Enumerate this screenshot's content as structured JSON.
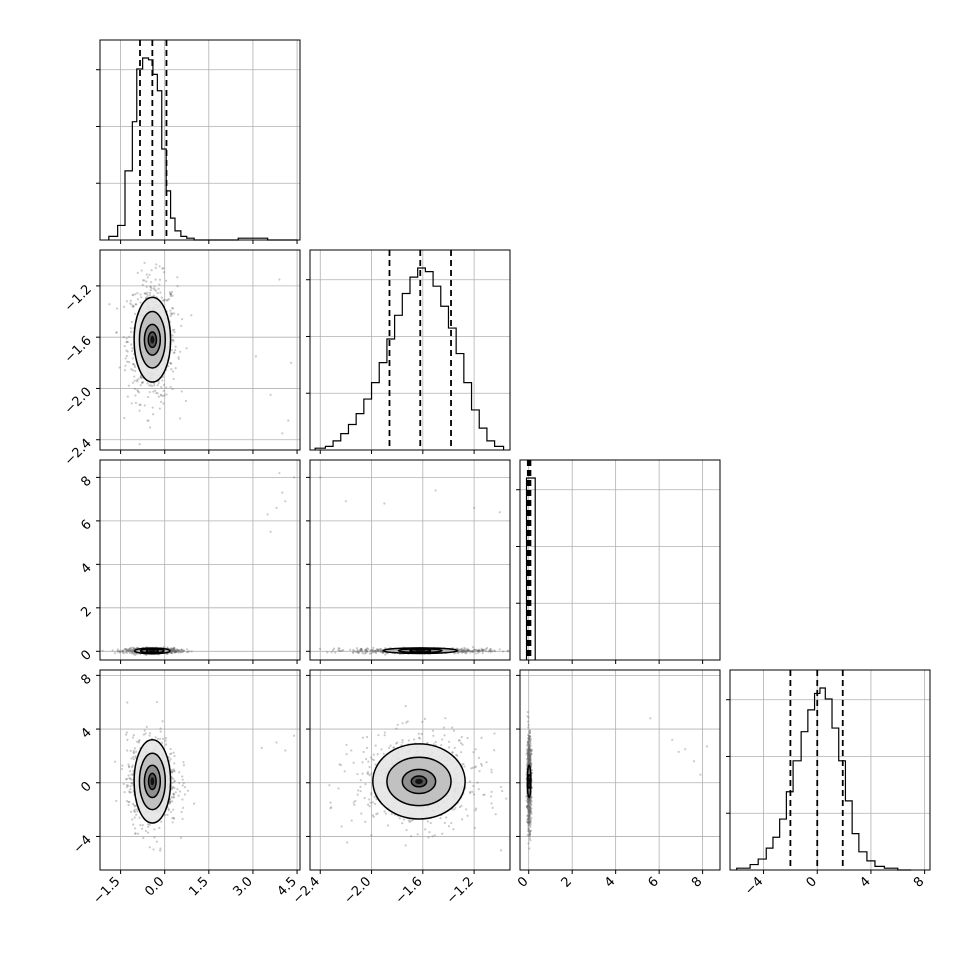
{
  "chart_data": {
    "type": "corner",
    "parameters": 4,
    "axes": [
      {
        "range": [
          -2.2,
          4.6
        ],
        "ticks": [
          -1.5,
          0.0,
          1.5,
          3.0,
          4.5
        ],
        "tick_labels": [
          "−1.5",
          "0.0",
          "1.5",
          "3.0",
          "4.5"
        ]
      },
      {
        "range": [
          -2.48,
          -0.92
        ],
        "ticks": [
          -2.4,
          -2.0,
          -1.6,
          -1.2
        ],
        "tick_labels": [
          "−2.4",
          "−2.0",
          "−1.6",
          "−1.2"
        ]
      },
      {
        "range": [
          -0.4,
          8.8
        ],
        "ticks": [
          0,
          2,
          4,
          6,
          8
        ],
        "tick_labels": [
          "0",
          "2",
          "4",
          "6",
          "8"
        ]
      },
      {
        "range": [
          -6.5,
          8.4
        ],
        "ticks": [
          -4,
          0,
          4,
          8
        ],
        "tick_labels": [
          "−4",
          "0",
          "4",
          "8"
        ]
      }
    ],
    "histograms": [
      {
        "param": 0,
        "bins": [
          -1.9,
          -1.6,
          -1.35,
          -1.1,
          -0.95,
          -0.75,
          -0.55,
          -0.4,
          -0.25,
          -0.1,
          0.05,
          0.2,
          0.35,
          0.55,
          0.75,
          1.0,
          1.3,
          1.7,
          2.5,
          3.5,
          3.8,
          4.5
        ],
        "counts": [
          0.02,
          0.08,
          0.38,
          0.65,
          0.94,
          1.0,
          0.99,
          0.91,
          0.82,
          0.5,
          0.27,
          0.12,
          0.05,
          0.02,
          0.01,
          0.0,
          0.0,
          0.0,
          0.01,
          0.0,
          0.0
        ],
        "quantiles": [
          -0.84,
          -0.42,
          0.06
        ]
      },
      {
        "param": 1,
        "bins": [
          -2.44,
          -2.36,
          -2.3,
          -2.24,
          -2.18,
          -2.12,
          -2.06,
          -2.0,
          -1.94,
          -1.88,
          -1.82,
          -1.76,
          -1.7,
          -1.64,
          -1.58,
          -1.52,
          -1.46,
          -1.4,
          -1.34,
          -1.28,
          -1.22,
          -1.16,
          -1.1,
          -1.04,
          -0.97
        ],
        "counts": [
          0.01,
          0.02,
          0.05,
          0.09,
          0.14,
          0.2,
          0.28,
          0.37,
          0.48,
          0.61,
          0.74,
          0.86,
          0.95,
          1.0,
          0.98,
          0.9,
          0.79,
          0.67,
          0.53,
          0.37,
          0.22,
          0.12,
          0.05,
          0.02
        ],
        "quantiles": [
          -1.86,
          -1.62,
          -1.38
        ]
      },
      {
        "param": 2,
        "bins": [
          -0.1,
          0.3
        ],
        "counts": [
          1.0
        ],
        "quantiles": [
          -0.04,
          0.02,
          0.08
        ]
      },
      {
        "param": 3,
        "bins": [
          -6.0,
          -5.0,
          -4.4,
          -3.8,
          -3.3,
          -2.8,
          -2.3,
          -1.8,
          -1.2,
          -0.7,
          -0.2,
          0.2,
          0.6,
          1.1,
          1.6,
          2.1,
          2.6,
          3.1,
          3.7,
          4.3,
          5.0,
          6.0,
          7.0
        ],
        "counts": [
          0.01,
          0.03,
          0.06,
          0.12,
          0.18,
          0.28,
          0.43,
          0.6,
          0.76,
          0.88,
          0.97,
          1.0,
          0.94,
          0.78,
          0.6,
          0.38,
          0.2,
          0.1,
          0.05,
          0.02,
          0.01,
          0.0
        ],
        "quantiles": [
          -2.0,
          0.0,
          1.9
        ]
      }
    ],
    "scatter_panels": [
      {
        "x_param": 0,
        "y_param": 1,
        "center": [
          -0.42,
          -1.62
        ],
        "spread": [
          0.42,
          0.24
        ],
        "contours": [
          {
            "rx": 0.14,
            "ry": 0.06
          },
          {
            "rx": 0.27,
            "ry": 0.12
          },
          {
            "rx": 0.44,
            "ry": 0.22
          },
          {
            "rx": 0.62,
            "ry": 0.33
          }
        ],
        "outliers": [
          [
            3.9,
            -1.15
          ],
          [
            4.2,
            -2.25
          ],
          [
            3.1,
            -1.75
          ],
          [
            3.6,
            -2.05
          ],
          [
            4.0,
            -2.35
          ],
          [
            4.3,
            -1.8
          ]
        ]
      },
      {
        "x_param": 0,
        "y_param": 2,
        "center": [
          -0.42,
          0.02
        ],
        "spread": [
          0.45,
          0.06
        ],
        "contours": [
          {
            "rx": 0.2,
            "ry": 0.05
          },
          {
            "rx": 0.4,
            "ry": 0.09
          },
          {
            "rx": 0.6,
            "ry": 0.13
          }
        ],
        "outliers": [
          [
            3.8,
            6.6
          ],
          [
            4.1,
            6.9
          ],
          [
            3.6,
            5.5
          ],
          [
            4.0,
            7.3
          ],
          [
            4.4,
            8.0
          ],
          [
            3.9,
            8.2
          ],
          [
            3.5,
            6.3
          ]
        ]
      },
      {
        "x_param": 1,
        "y_param": 2,
        "center": [
          -1.62,
          0.03
        ],
        "spread": [
          0.26,
          0.06
        ],
        "contours": [
          {
            "rx": 0.08,
            "ry": 0.05
          },
          {
            "rx": 0.17,
            "ry": 0.09
          },
          {
            "rx": 0.29,
            "ry": 0.13
          }
        ],
        "outliers": [
          [
            -2.4,
            8.0
          ],
          [
            -2.2,
            6.9
          ],
          [
            -1.9,
            6.8
          ],
          [
            -1.5,
            7.4
          ],
          [
            -1.2,
            6.6
          ],
          [
            -1.0,
            6.4
          ]
        ]
      },
      {
        "x_param": 0,
        "y_param": 3,
        "center": [
          -0.42,
          0.1
        ],
        "spread": [
          0.43,
          1.65
        ],
        "contours": [
          {
            "rx": 0.13,
            "ry": 0.6
          },
          {
            "rx": 0.27,
            "ry": 1.2
          },
          {
            "rx": 0.44,
            "ry": 2.1
          },
          {
            "rx": 0.62,
            "ry": 3.1
          }
        ],
        "outliers": [
          [
            3.8,
            3.0
          ],
          [
            4.1,
            2.4
          ],
          [
            3.3,
            2.6
          ],
          [
            4.4,
            3.5
          ]
        ]
      },
      {
        "x_param": 1,
        "y_param": 3,
        "center": [
          -1.63,
          0.1
        ],
        "spread": [
          0.25,
          1.7
        ],
        "contours": [
          {
            "rx": 0.06,
            "ry": 0.4
          },
          {
            "rx": 0.13,
            "ry": 0.9
          },
          {
            "rx": 0.25,
            "ry": 1.8
          },
          {
            "rx": 0.36,
            "ry": 2.8
          }
        ],
        "outliers": []
      },
      {
        "x_param": 2,
        "y_param": 3,
        "center": [
          0.02,
          0.1
        ],
        "spread": [
          0.05,
          1.7
        ],
        "contours": [
          {
            "rx": 0.05,
            "ry": 0.5
          },
          {
            "rx": 0.08,
            "ry": 1.2
          }
        ],
        "outliers": [
          [
            5.6,
            4.8
          ],
          [
            6.6,
            3.2
          ],
          [
            7.2,
            2.5
          ],
          [
            7.6,
            1.6
          ],
          [
            8.2,
            2.7
          ],
          [
            7.9,
            0.6
          ],
          [
            6.9,
            2.3
          ]
        ]
      }
    ]
  }
}
